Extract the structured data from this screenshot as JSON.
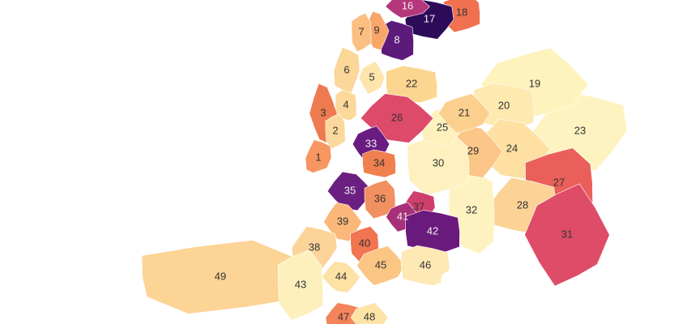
{
  "districts": [
    {
      "label": "49",
      "color": "#fcd496"
    },
    {
      "label": "23",
      "color": "#fef3c0"
    },
    {
      "label": "19",
      "color": "#fef3bd"
    },
    {
      "label": "20",
      "color": "#fee9b0"
    },
    {
      "label": "24",
      "color": "#fde0a2"
    },
    {
      "label": "27",
      "color": "#ea5f5a"
    },
    {
      "label": "28",
      "color": "#fcd297"
    },
    {
      "label": "31",
      "color": "#de4c67"
    },
    {
      "label": "32",
      "color": "#fef2c0"
    },
    {
      "label": "29",
      "color": "#fbc687"
    },
    {
      "label": "30",
      "color": "#fef1bf"
    },
    {
      "label": "25",
      "color": "#fef1bc"
    },
    {
      "label": "21",
      "color": "#fbd08e"
    },
    {
      "label": "22",
      "color": "#fcd590"
    },
    {
      "label": "26",
      "color": "#dd4a6a"
    },
    {
      "label": "18",
      "color": "#f0704f"
    },
    {
      "label": "17",
      "color": "#2d0b59"
    },
    {
      "label": "16",
      "color": "#b5367a"
    },
    {
      "label": "8",
      "color": "#5c1a7a"
    },
    {
      "label": "9",
      "color": "#f9a66a"
    },
    {
      "label": "7",
      "color": "#fcbf82"
    },
    {
      "label": "6",
      "color": "#fcd79a"
    },
    {
      "label": "5",
      "color": "#fde5ac"
    },
    {
      "label": "4",
      "color": "#fcd99a"
    },
    {
      "label": "3",
      "color": "#ef7a50"
    },
    {
      "label": "2",
      "color": "#fdd89c"
    },
    {
      "label": "1",
      "color": "#f79660"
    },
    {
      "label": "33",
      "color": "#6a1c81"
    },
    {
      "label": "34",
      "color": "#f08050"
    },
    {
      "label": "35",
      "color": "#6b1f80"
    },
    {
      "label": "36",
      "color": "#f29060"
    },
    {
      "label": "37",
      "color": "#cf3f6c"
    },
    {
      "label": "41",
      "color": "#a82f7a"
    },
    {
      "label": "42",
      "color": "#6a1a7d"
    },
    {
      "label": "39",
      "color": "#fbb87a"
    },
    {
      "label": "40",
      "color": "#f07550"
    },
    {
      "label": "38",
      "color": "#fcd499"
    },
    {
      "label": "45",
      "color": "#fbc583"
    },
    {
      "label": "46",
      "color": "#fee8b4"
    },
    {
      "label": "44",
      "color": "#fde2a6"
    },
    {
      "label": "43",
      "color": "#fdf0bd"
    },
    {
      "label": "47",
      "color": "#f4845a"
    },
    {
      "label": "48",
      "color": "#fde3a6"
    }
  ]
}
